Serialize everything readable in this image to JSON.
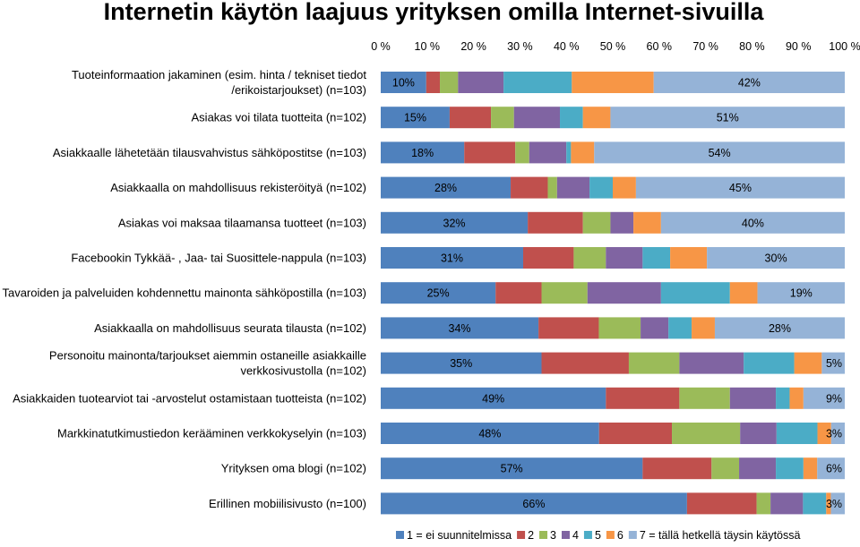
{
  "chart_data": {
    "type": "bar",
    "orientation": "horizontal",
    "stacked": "percent",
    "title": "Internetin käytön laajuus yrityksen omilla Internet-sivuilla",
    "x_ticks": [
      "0 %",
      "10 %",
      "20 %",
      "30 %",
      "40 %",
      "50 %",
      "60 %",
      "70 %",
      "80 %",
      "90 %",
      "100 %"
    ],
    "xlim": [
      0,
      100
    ],
    "axis_position": "top",
    "categories": [
      [
        "Tuoteinformaation jakaminen (esim. hinta / tekniset tiedot",
        "/erikoistarjoukset) (n=103)"
      ],
      [
        "Asiakas voi tilata tuotteita (n=102)"
      ],
      [
        "Asiakkaalle lähetetään tilausvahvistus sähköpostitse (n=103)"
      ],
      [
        "Asiakkaalla on mahdollisuus rekisteröityä (n=102)"
      ],
      [
        "Asiakas voi maksaa tilaamansa tuotteet (n=103)"
      ],
      [
        "Facebookin Tykkää- , Jaa- tai Suosittele-nappula (n=103)"
      ],
      [
        "Tavaroiden ja palveluiden kohdennettu mainonta sähköpostilla  (n=103)"
      ],
      [
        "Asiakkaalla on mahdollisuus seurata tilausta (n=102)"
      ],
      [
        "Personoitu mainonta/tarjoukset aiemmin ostaneille asiakkaille",
        "verkkosivustolla  (n=102)"
      ],
      [
        "Asiakkaiden tuotearviot tai -arvostelut ostamistaan tuotteista (n=102)"
      ],
      [
        "Markkinatutkimustiedon kerääminen verkkokyselyin (n=103)"
      ],
      [
        "Yrityksen oma blogi (n=102)"
      ],
      [
        "Erillinen mobiilisivusto (n=100)"
      ]
    ],
    "series": [
      {
        "name": "1 = ei suunnitelmissa",
        "color": "#4F81BD",
        "values": [
          10,
          15,
          18,
          28,
          32,
          31,
          25,
          34,
          35,
          49,
          48,
          57,
          66
        ],
        "labels": [
          "10%",
          "15%",
          "18%",
          "28%",
          "32%",
          "31%",
          "25%",
          "34%",
          "35%",
          "49%",
          "48%",
          "57%",
          "66%"
        ]
      },
      {
        "name": "2",
        "color": "#C0504D",
        "values": [
          3,
          9,
          11,
          8,
          12,
          11,
          10,
          13,
          19,
          16,
          16,
          15,
          15
        ]
      },
      {
        "name": "3",
        "color": "#9BBB59",
        "values": [
          4,
          5,
          3,
          2,
          6,
          7,
          10,
          9,
          11,
          11,
          15,
          6,
          3
        ]
      },
      {
        "name": "4",
        "color": "#8064A2",
        "values": [
          10,
          10,
          8,
          7,
          5,
          8,
          16,
          6,
          14,
          10,
          8,
          8,
          7
        ]
      },
      {
        "name": "5",
        "color": "#4BACC6",
        "values": [
          15,
          5,
          1,
          5,
          0,
          6,
          15,
          5,
          11,
          3,
          9,
          6,
          5
        ]
      },
      {
        "name": "6",
        "color": "#F79646",
        "values": [
          18,
          6,
          5,
          5,
          6,
          8,
          6,
          5,
          6,
          3,
          3,
          3,
          1
        ]
      },
      {
        "name": "7 = tällä hetkellä täysin käytössä",
        "color": "#95B3D7",
        "values": [
          42,
          51,
          54,
          45,
          40,
          30,
          19,
          28,
          5,
          9,
          3,
          6,
          3
        ],
        "labels": [
          "42%",
          "51%",
          "54%",
          "45%",
          "40%",
          "30%",
          "19%",
          "28%",
          "5%",
          "9%",
          "3%",
          "6%",
          "3%"
        ]
      }
    ],
    "legend_position": "bottom"
  }
}
